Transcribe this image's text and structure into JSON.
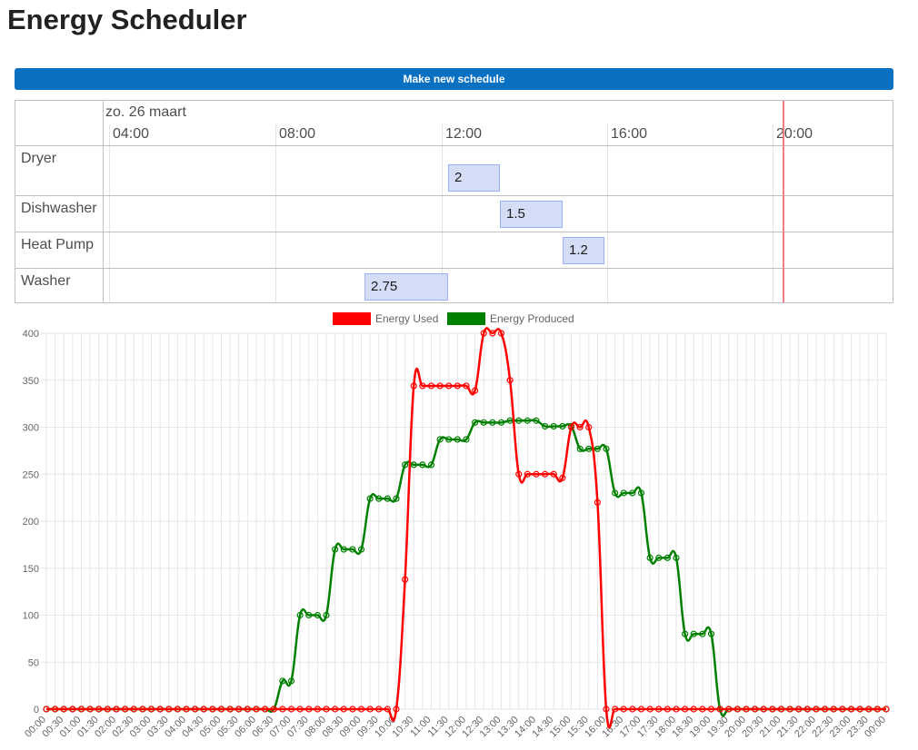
{
  "page": {
    "title": "Energy Scheduler"
  },
  "toolbar": {
    "make_schedule_label": "Make new schedule"
  },
  "timeline": {
    "date_label": "zo. 26 maart",
    "hour_ticks": [
      "04:00",
      "08:00",
      "12:00",
      "16:00",
      "20:00"
    ],
    "now_time": "19:40",
    "groups": [
      {
        "label": "Dryer",
        "item": {
          "value": "2",
          "start": "11:45",
          "end": "13:00"
        }
      },
      {
        "label": "Dishwasher",
        "item": {
          "value": "1.5",
          "start": "13:00",
          "end": "14:30"
        }
      },
      {
        "label": "Heat Pump",
        "item": {
          "value": "1.2",
          "start": "14:30",
          "end": "15:30"
        }
      },
      {
        "label": "Washer",
        "item": {
          "value": "2.75",
          "start": "09:45",
          "end": "11:45"
        }
      }
    ]
  },
  "legend": {
    "energy_used": "Energy Used",
    "energy_produced": "Energy Produced"
  },
  "colors": {
    "accent": "#0a70c2",
    "used": "#ff0000",
    "produced": "#008000",
    "item_bg": "#d5ddf6",
    "item_border": "#97b0f8",
    "now_line": "#f08080"
  },
  "chart_data": {
    "type": "line",
    "title": "",
    "xlabel": "",
    "ylabel": "",
    "ylim": [
      0,
      400
    ],
    "yticks": [
      0,
      50,
      100,
      150,
      200,
      250,
      300,
      350,
      400
    ],
    "grid": true,
    "legend_position": "top-center",
    "x": [
      "00:00",
      "00:15",
      "00:30",
      "00:45",
      "01:00",
      "01:15",
      "01:30",
      "01:45",
      "02:00",
      "02:15",
      "02:30",
      "02:45",
      "03:00",
      "03:15",
      "03:30",
      "03:45",
      "04:00",
      "04:15",
      "04:30",
      "04:45",
      "05:00",
      "05:15",
      "05:30",
      "05:45",
      "06:00",
      "06:15",
      "06:30",
      "06:45",
      "07:00",
      "07:15",
      "07:30",
      "07:45",
      "08:00",
      "08:15",
      "08:30",
      "08:45",
      "09:00",
      "09:15",
      "09:30",
      "09:45",
      "10:00",
      "10:15",
      "10:30",
      "10:45",
      "11:00",
      "11:15",
      "11:30",
      "11:45",
      "12:00",
      "12:15",
      "12:30",
      "12:45",
      "13:00",
      "13:15",
      "13:30",
      "13:45",
      "14:00",
      "14:15",
      "14:30",
      "14:45",
      "15:00",
      "15:15",
      "15:30",
      "15:45",
      "16:00",
      "16:15",
      "16:30",
      "16:45",
      "17:00",
      "17:15",
      "17:30",
      "17:45",
      "18:00",
      "18:15",
      "18:30",
      "18:45",
      "19:00",
      "19:15",
      "19:30",
      "19:45",
      "20:00",
      "20:15",
      "20:30",
      "20:45",
      "21:00",
      "21:15",
      "21:30",
      "21:45",
      "22:00",
      "22:15",
      "22:30",
      "22:45",
      "23:00",
      "23:15",
      "23:30",
      "23:45",
      "00:00"
    ],
    "series": [
      {
        "name": "Energy Used",
        "color": "#ff0000",
        "values": [
          0,
          0,
          0,
          0,
          0,
          0,
          0,
          0,
          0,
          0,
          0,
          0,
          0,
          0,
          0,
          0,
          0,
          0,
          0,
          0,
          0,
          0,
          0,
          0,
          0,
          0,
          0,
          0,
          0,
          0,
          0,
          0,
          0,
          0,
          0,
          0,
          0,
          0,
          0,
          0,
          0,
          138,
          344,
          344,
          344,
          344,
          344,
          344,
          344,
          339,
          400,
          400,
          400,
          350,
          250,
          250,
          250,
          250,
          250,
          246,
          300,
          300,
          300,
          220,
          0,
          0,
          0,
          0,
          0,
          0,
          0,
          0,
          0,
          0,
          0,
          0,
          0,
          0,
          0,
          0,
          0,
          0,
          0,
          0,
          0,
          0,
          0,
          0,
          0,
          0,
          0,
          0,
          0,
          0,
          0,
          0,
          0
        ]
      },
      {
        "name": "Energy Produced",
        "color": "#008000",
        "values": [
          0,
          0,
          0,
          0,
          0,
          0,
          0,
          0,
          0,
          0,
          0,
          0,
          0,
          0,
          0,
          0,
          0,
          0,
          0,
          0,
          0,
          0,
          0,
          0,
          0,
          0,
          0,
          30,
          30,
          100,
          100,
          100,
          100,
          170,
          170,
          170,
          170,
          224,
          224,
          224,
          224,
          260,
          260,
          260,
          260,
          287,
          287,
          287,
          287,
          305,
          305,
          305,
          305,
          307,
          307,
          307,
          307,
          301,
          301,
          301,
          301,
          277,
          277,
          277,
          277,
          230,
          230,
          230,
          230,
          161,
          161,
          161,
          161,
          80,
          80,
          80,
          80,
          0,
          0,
          0,
          0,
          0,
          0,
          0,
          0,
          0,
          0,
          0,
          0,
          0,
          0,
          0,
          0,
          0,
          0,
          0,
          0
        ]
      }
    ]
  }
}
